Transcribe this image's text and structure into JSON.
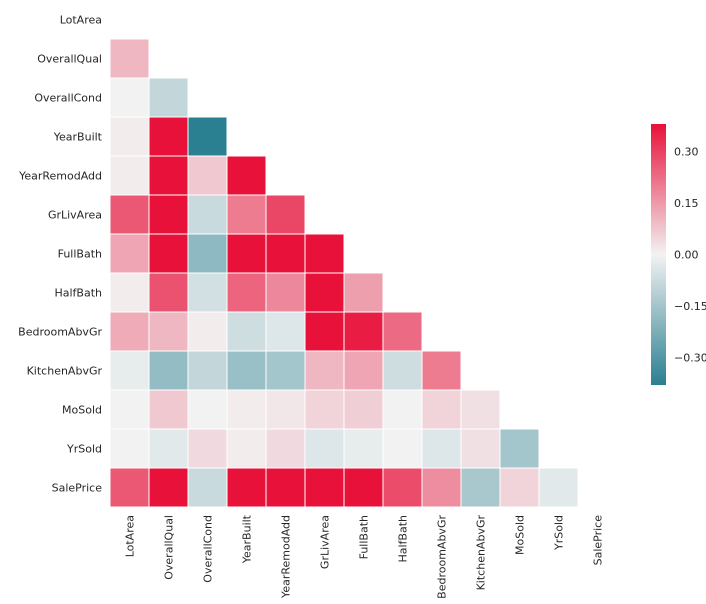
{
  "chart_data": {
    "type": "heatmap",
    "title": "",
    "mask": "upper-triangle-and-diagonal",
    "variables": [
      "LotArea",
      "OverallQual",
      "OverallCond",
      "YearBuilt",
      "YearRemodAdd",
      "GrLivArea",
      "FullBath",
      "HalfBath",
      "BedroomAbvGr",
      "KitchenAbvGr",
      "MoSold",
      "YrSold",
      "SalePrice"
    ],
    "matrix": [
      [
        null,
        null,
        null,
        null,
        null,
        null,
        null,
        null,
        null,
        null,
        null,
        null,
        null
      ],
      [
        0.1,
        null,
        null,
        null,
        null,
        null,
        null,
        null,
        null,
        null,
        null,
        null,
        null
      ],
      [
        0.0,
        -0.09,
        null,
        null,
        null,
        null,
        null,
        null,
        null,
        null,
        null,
        null,
        null
      ],
      [
        0.01,
        0.57,
        -0.38,
        null,
        null,
        null,
        null,
        null,
        null,
        null,
        null,
        null,
        null
      ],
      [
        0.01,
        0.55,
        0.07,
        0.59,
        null,
        null,
        null,
        null,
        null,
        null,
        null,
        null,
        null
      ],
      [
        0.26,
        0.59,
        -0.08,
        0.2,
        0.29,
        null,
        null,
        null,
        null,
        null,
        null,
        null,
        null
      ],
      [
        0.13,
        0.55,
        -0.19,
        0.47,
        0.44,
        0.63,
        null,
        null,
        null,
        null,
        null,
        null,
        null
      ],
      [
        0.01,
        0.27,
        -0.06,
        0.24,
        0.18,
        0.42,
        0.14,
        null,
        null,
        null,
        null,
        null,
        null
      ],
      [
        0.12,
        0.1,
        0.01,
        -0.07,
        -0.04,
        0.52,
        0.36,
        0.23,
        null,
        null,
        null,
        null,
        null
      ],
      [
        -0.02,
        -0.18,
        -0.09,
        -0.17,
        -0.15,
        0.1,
        0.13,
        -0.07,
        0.2,
        null,
        null,
        null,
        null
      ],
      [
        0.0,
        0.07,
        0.0,
        0.01,
        0.02,
        0.05,
        0.06,
        0.0,
        0.05,
        0.03,
        null,
        null,
        null
      ],
      [
        0.0,
        -0.03,
        0.04,
        0.01,
        0.04,
        -0.04,
        -0.02,
        0.0,
        -0.04,
        0.03,
        -0.15,
        null,
        null
      ],
      [
        0.26,
        0.79,
        -0.08,
        0.52,
        0.51,
        0.71,
        0.56,
        0.28,
        0.17,
        -0.14,
        0.05,
        -0.03,
        null
      ]
    ],
    "colorbar": {
      "vmin": -0.38,
      "vmax": 0.38,
      "ticks": [
        0.3,
        0.15,
        0.0,
        -0.15,
        -0.3
      ],
      "tick_labels": [
        "0.30",
        "0.15",
        "0.00",
        "−0.15",
        "−0.30"
      ]
    },
    "colors": {
      "negative": "#2a7f91",
      "center": "#f2f2f2",
      "positive": "#e8113a",
      "grid_line": "#ffffff"
    }
  }
}
